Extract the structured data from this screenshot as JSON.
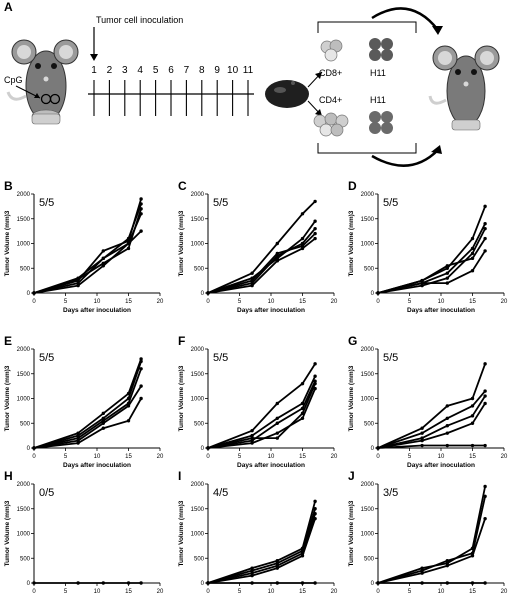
{
  "schematic": {
    "panel_letter": "A",
    "inoculation_label": "Tumor cell inoculation",
    "cpg_label": "CpG",
    "days": [
      "1",
      "2",
      "3",
      "4",
      "5",
      "6",
      "7",
      "8",
      "9",
      "10",
      "11"
    ],
    "cd8_label": "CD8+",
    "cd4_label": "CD4+",
    "h11_top_label": "H11",
    "h11_bottom_label": "H11"
  },
  "chart_data": [
    {
      "panel": "B",
      "type": "line",
      "ratio": "5/5",
      "xlabel": "Days after inoculation",
      "ylabel": "Tumor Volume (mm)3",
      "xlim": [
        0,
        20
      ],
      "ylim": [
        0,
        2000
      ],
      "xticks": [
        "0",
        "5",
        "10",
        "15",
        "20"
      ],
      "yticks": [
        "0",
        "500",
        "1000",
        "1500",
        "2000"
      ],
      "series": [
        {
          "x": [
            0,
            7,
            11,
            15,
            17
          ],
          "y": [
            0,
            250,
            850,
            1050,
            1900
          ]
        },
        {
          "x": [
            0,
            7,
            11,
            15,
            17
          ],
          "y": [
            0,
            200,
            700,
            1100,
            1800
          ]
        },
        {
          "x": [
            0,
            7,
            11,
            15,
            17
          ],
          "y": [
            0,
            280,
            600,
            900,
            1700
          ]
        },
        {
          "x": [
            0,
            7,
            11,
            15,
            17
          ],
          "y": [
            0,
            300,
            700,
            1000,
            1250
          ]
        },
        {
          "x": [
            0,
            7,
            11,
            15,
            17
          ],
          "y": [
            0,
            150,
            550,
            1000,
            1600
          ]
        }
      ]
    },
    {
      "panel": "C",
      "type": "line",
      "ratio": "5/5",
      "xlabel": "Days after inoculation",
      "ylabel": "Tumor Volume (mm)3",
      "xlim": [
        0,
        20
      ],
      "ylim": [
        0,
        2000
      ],
      "xticks": [
        "0",
        "5",
        "10",
        "15",
        "20"
      ],
      "yticks": [
        "0",
        "500",
        "1000",
        "1500",
        "2000"
      ],
      "series": [
        {
          "x": [
            0,
            7,
            11,
            15,
            17
          ],
          "y": [
            0,
            400,
            1000,
            1600,
            1850
          ]
        },
        {
          "x": [
            0,
            7,
            11,
            15,
            17
          ],
          "y": [
            0,
            300,
            700,
            1100,
            1450
          ]
        },
        {
          "x": [
            0,
            7,
            11,
            15,
            17
          ],
          "y": [
            0,
            200,
            750,
            1000,
            1300
          ]
        },
        {
          "x": [
            0,
            7,
            11,
            15,
            17
          ],
          "y": [
            0,
            250,
            800,
            950,
            1200
          ]
        },
        {
          "x": [
            0,
            7,
            11,
            15,
            17
          ],
          "y": [
            0,
            150,
            650,
            900,
            1100
          ]
        }
      ]
    },
    {
      "panel": "D",
      "type": "line",
      "ratio": "5/5",
      "xlabel": "Days after inoculation",
      "ylabel": "Tumor Volume (mm)3",
      "xlim": [
        0,
        20
      ],
      "ylim": [
        0,
        2000
      ],
      "xticks": [
        "0",
        "5",
        "10",
        "15",
        "20"
      ],
      "yticks": [
        "0",
        "500",
        "1000",
        "1500",
        "2000"
      ],
      "series": [
        {
          "x": [
            0,
            7,
            11,
            15,
            17
          ],
          "y": [
            0,
            250,
            500,
            1100,
            1750
          ]
        },
        {
          "x": [
            0,
            7,
            11,
            15,
            17
          ],
          "y": [
            0,
            200,
            400,
            900,
            1400
          ]
        },
        {
          "x": [
            0,
            7,
            11,
            15,
            17
          ],
          "y": [
            0,
            150,
            300,
            800,
            1300
          ]
        },
        {
          "x": [
            0,
            7,
            11,
            15,
            17
          ],
          "y": [
            0,
            250,
            550,
            700,
            1100
          ]
        },
        {
          "x": [
            0,
            7,
            11,
            15,
            17
          ],
          "y": [
            0,
            200,
            200,
            450,
            850
          ]
        }
      ]
    },
    {
      "panel": "E",
      "type": "line",
      "ratio": "5/5",
      "xlabel": "Days after inoculation",
      "ylabel": "Tumor Volume (mm)3",
      "xlim": [
        0,
        20
      ],
      "ylim": [
        0,
        2000
      ],
      "xticks": [
        "0",
        "5",
        "10",
        "15",
        "20"
      ],
      "yticks": [
        "0",
        "500",
        "1000",
        "1500",
        "2000"
      ],
      "series": [
        {
          "x": [
            0,
            7,
            11,
            15,
            17
          ],
          "y": [
            0,
            300,
            700,
            1100,
            1800
          ]
        },
        {
          "x": [
            0,
            7,
            11,
            15,
            17
          ],
          "y": [
            0,
            250,
            600,
            1000,
            1750
          ]
        },
        {
          "x": [
            0,
            7,
            11,
            15,
            17
          ],
          "y": [
            0,
            200,
            550,
            900,
            1600
          ]
        },
        {
          "x": [
            0,
            7,
            11,
            15,
            17
          ],
          "y": [
            0,
            150,
            500,
            850,
            1250
          ]
        },
        {
          "x": [
            0,
            7,
            11,
            15,
            17
          ],
          "y": [
            0,
            100,
            400,
            550,
            1000
          ]
        }
      ]
    },
    {
      "panel": "F",
      "type": "line",
      "ratio": "5/5",
      "xlabel": "Days after inoculation",
      "ylabel": "Tumor Volume (mm)3",
      "xlim": [
        0,
        20
      ],
      "ylim": [
        0,
        2000
      ],
      "xticks": [
        "0",
        "5",
        "10",
        "15",
        "20"
      ],
      "yticks": [
        "0",
        "500",
        "1000",
        "1500",
        "2000"
      ],
      "series": [
        {
          "x": [
            0,
            7,
            11,
            15,
            17
          ],
          "y": [
            0,
            350,
            900,
            1300,
            1700
          ]
        },
        {
          "x": [
            0,
            7,
            11,
            15,
            17
          ],
          "y": [
            0,
            250,
            600,
            900,
            1450
          ]
        },
        {
          "x": [
            0,
            7,
            11,
            15,
            17
          ],
          "y": [
            0,
            150,
            500,
            800,
            1350
          ]
        },
        {
          "x": [
            0,
            7,
            11,
            15,
            17
          ],
          "y": [
            0,
            200,
            200,
            700,
            1300
          ]
        },
        {
          "x": [
            0,
            7,
            11,
            15,
            17
          ],
          "y": [
            0,
            100,
            300,
            600,
            1200
          ]
        }
      ]
    },
    {
      "panel": "G",
      "type": "line",
      "ratio": "5/5",
      "xlabel": "Days after inoculation",
      "ylabel": "Tumor Volume (mm)3",
      "xlim": [
        0,
        20
      ],
      "ylim": [
        0,
        2000
      ],
      "xticks": [
        "0",
        "5",
        "10",
        "15",
        "20"
      ],
      "yticks": [
        "0",
        "500",
        "1000",
        "1500",
        "2000"
      ],
      "series": [
        {
          "x": [
            0,
            7,
            11,
            15,
            17
          ],
          "y": [
            0,
            400,
            850,
            1000,
            1700
          ]
        },
        {
          "x": [
            0,
            7,
            11,
            15,
            17
          ],
          "y": [
            0,
            300,
            600,
            850,
            1150
          ]
        },
        {
          "x": [
            0,
            7,
            11,
            15,
            17
          ],
          "y": [
            0,
            200,
            450,
            650,
            1050
          ]
        },
        {
          "x": [
            0,
            7,
            11,
            15,
            17
          ],
          "y": [
            0,
            150,
            300,
            500,
            900
          ]
        },
        {
          "x": [
            0,
            7,
            11,
            15,
            17
          ],
          "y": [
            0,
            50,
            50,
            50,
            50
          ]
        }
      ]
    },
    {
      "panel": "H",
      "type": "line",
      "ratio": "0/5",
      "xlabel": "Days after inoculation",
      "ylabel": "Tumor Volume (mm)3",
      "xlim": [
        0,
        20
      ],
      "ylim": [
        0,
        2000
      ],
      "xticks": [
        "0",
        "5",
        "10",
        "15",
        "20"
      ],
      "yticks": [
        "0",
        "500",
        "1000",
        "1500",
        "2000"
      ],
      "series": [
        {
          "x": [
            0,
            7,
            11,
            15,
            17
          ],
          "y": [
            0,
            0,
            0,
            0,
            0
          ]
        }
      ]
    },
    {
      "panel": "I",
      "type": "line",
      "ratio": "4/5",
      "xlabel": "Days after inoculation",
      "ylabel": "Tumor Volume (mm)3",
      "xlim": [
        0,
        20
      ],
      "ylim": [
        0,
        2000
      ],
      "xticks": [
        "0",
        "5",
        "10",
        "15",
        "20"
      ],
      "yticks": [
        "0",
        "500",
        "1000",
        "1500",
        "2000"
      ],
      "series": [
        {
          "x": [
            0,
            7,
            11,
            15,
            17
          ],
          "y": [
            0,
            300,
            450,
            700,
            1650
          ]
        },
        {
          "x": [
            0,
            7,
            11,
            15,
            17
          ],
          "y": [
            0,
            250,
            400,
            650,
            1500
          ]
        },
        {
          "x": [
            0,
            7,
            11,
            15,
            17
          ],
          "y": [
            0,
            200,
            350,
            600,
            1400
          ]
        },
        {
          "x": [
            0,
            7,
            11,
            15,
            17
          ],
          "y": [
            0,
            150,
            300,
            550,
            1300
          ]
        },
        {
          "x": [
            0,
            7,
            11,
            15,
            17
          ],
          "y": [
            0,
            0,
            0,
            0,
            0
          ]
        }
      ]
    },
    {
      "panel": "J",
      "type": "line",
      "ratio": "3/5",
      "xlabel": "Days after inoculation",
      "ylabel": "Tumor Volume (mm)3",
      "xlim": [
        0,
        20
      ],
      "ylim": [
        0,
        2000
      ],
      "xticks": [
        "0",
        "5",
        "10",
        "15",
        "20"
      ],
      "yticks": [
        "0",
        "500",
        "1000",
        "1500",
        "2000"
      ],
      "series": [
        {
          "x": [
            0,
            7,
            11,
            15,
            17
          ],
          "y": [
            0,
            300,
            400,
            700,
            1950
          ]
        },
        {
          "x": [
            0,
            7,
            11,
            15,
            17
          ],
          "y": [
            0,
            250,
            450,
            600,
            1750
          ]
        },
        {
          "x": [
            0,
            7,
            11,
            15,
            17
          ],
          "y": [
            0,
            200,
            350,
            550,
            1300
          ]
        },
        {
          "x": [
            0,
            7,
            11,
            15,
            17
          ],
          "y": [
            0,
            0,
            0,
            0,
            0
          ]
        }
      ]
    }
  ]
}
